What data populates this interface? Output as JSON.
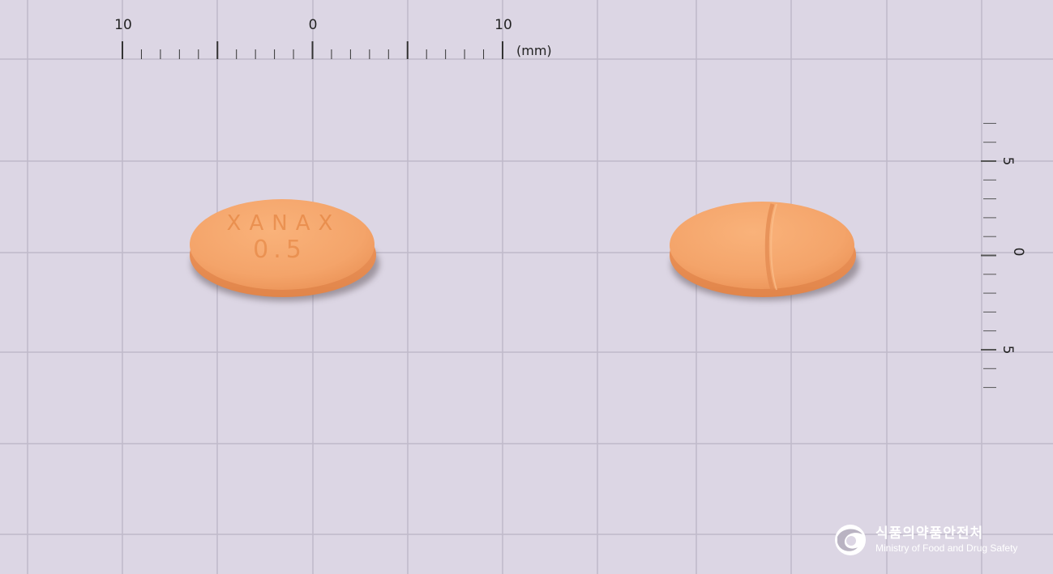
{
  "ruler": {
    "top": {
      "labels": [
        "10",
        "0",
        "10"
      ],
      "unit": "(mm)"
    },
    "right": {
      "labels": [
        "5",
        "0",
        "5"
      ]
    }
  },
  "tablets": [
    {
      "side": "front",
      "imprint_line1": "XANAX",
      "imprint_line2": "0.5"
    },
    {
      "side": "back",
      "feature": "score line"
    }
  ],
  "colors": {
    "background": "#dcd6e4",
    "grid": "#bfb9c9",
    "tablet": "#f4a86c",
    "logo_text": "#ffffff"
  },
  "logo": {
    "icon": "mfds-emblem-icon",
    "korean": "식품의약품안전처",
    "english": "Ministry of Food and Drug Safety"
  }
}
